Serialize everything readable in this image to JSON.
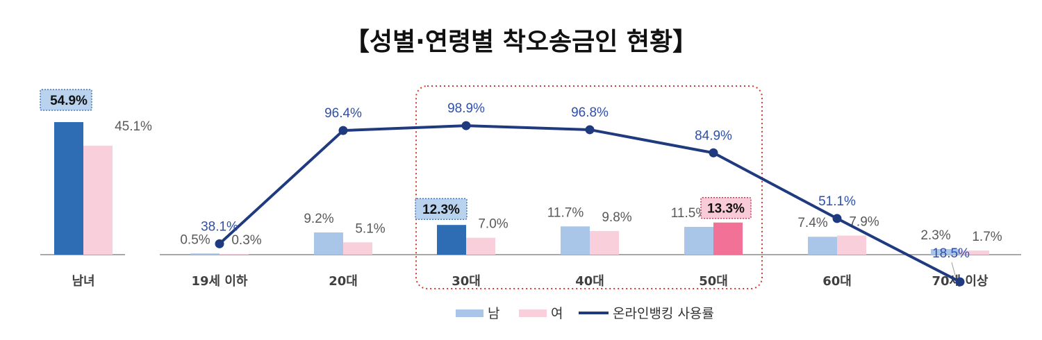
{
  "title": "【성별·연령별 착오송금인 현황】",
  "colors": {
    "male": "#a9c6e8",
    "female": "#f9cfdc",
    "male_highlight": "#2e6cb3",
    "female_highlight": "#f27297",
    "line": "#1f3a7f",
    "line_label": "#2f4fa8",
    "highlight_box": "#d0392b"
  },
  "chart_data": [
    {
      "type": "bar",
      "categories": [
        "남녀"
      ],
      "series": [
        {
          "name": "남",
          "values": [
            54.9
          ]
        },
        {
          "name": "여",
          "values": [
            45.1
          ]
        }
      ],
      "labels": {
        "male": [
          "54.9%"
        ],
        "female": [
          "45.1%"
        ]
      },
      "highlight": {
        "male": [
          0
        ]
      },
      "unit": "%"
    },
    {
      "type": "bar+line",
      "categories": [
        "19세 이하",
        "20대",
        "30대",
        "40대",
        "50대",
        "60대",
        "70세 이상"
      ],
      "series": [
        {
          "name": "남",
          "values": [
            0.5,
            9.2,
            12.3,
            11.7,
            11.5,
            7.4,
            2.3
          ]
        },
        {
          "name": "여",
          "values": [
            0.3,
            5.1,
            7.0,
            9.8,
            13.3,
            7.9,
            1.7
          ]
        },
        {
          "name": "온라인뱅킹 사용률",
          "values": [
            38.1,
            96.4,
            98.9,
            96.8,
            84.9,
            51.1,
            18.5
          ]
        }
      ],
      "labels": {
        "male": [
          "0.5%",
          "9.2%",
          "12.3%",
          "11.7%",
          "11.5%",
          "7.4%",
          "2.3%"
        ],
        "female": [
          "0.3%",
          "5.1%",
          "7.0%",
          "9.8%",
          "13.3%",
          "7.9%",
          "1.7%"
        ],
        "line": [
          "38.1%",
          "96.4%",
          "98.9%",
          "96.8%",
          "84.9%",
          "51.1%",
          "18.5%"
        ]
      },
      "highlight": {
        "male": [
          2
        ],
        "female": [
          4
        ]
      },
      "highlight_region": [
        "30대",
        "50대"
      ],
      "unit": "%"
    }
  ],
  "legend": {
    "male": "남",
    "female": "여",
    "line": "온라인뱅킹 사용률"
  }
}
